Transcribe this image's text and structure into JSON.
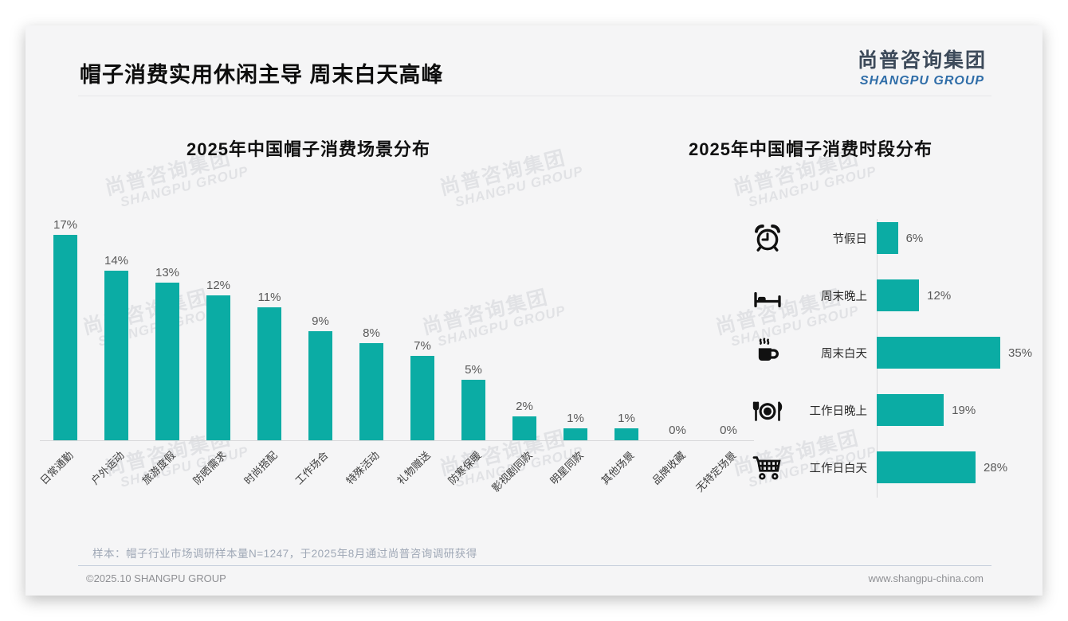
{
  "page": {
    "title": "帽子消费实用休闲主导 周末白天高峰",
    "logo": {
      "cn": "尚普咨询集团",
      "en": "SHANGPU GROUP"
    },
    "watermark": {
      "cn": "尚普咨询集团",
      "en": "SHANGPU GROUP"
    },
    "note": "样本：帽子行业市场调研样本量N=1247，于2025年8月通过尚普咨询调研获得",
    "footer_left": "©2025.10 SHANGPU GROUP",
    "footer_right": "www.shangpu-china.com"
  },
  "colors": {
    "bar_teal": "#0BACA4",
    "logo_en_blue": "#2f6da8",
    "logo_cn_dark": "#3d4a5a"
  },
  "chart_data": [
    {
      "type": "bar",
      "orientation": "vertical",
      "title": "2025年中国帽子消费场景分布",
      "categories": [
        "日常通勤",
        "户外运动",
        "旅游度假",
        "防晒需求",
        "时尚搭配",
        "工作场合",
        "特殊活动",
        "礼物赠送",
        "防寒保暖",
        "影视剧同款",
        "明星同款",
        "其他场景",
        "品牌收藏",
        "无特定场景"
      ],
      "values": [
        17,
        14,
        13,
        12,
        11,
        9,
        8,
        7,
        5,
        2,
        1,
        1,
        0,
        0
      ],
      "unit": "%",
      "ylim": [
        0,
        18
      ],
      "data_labels": "above-bar",
      "grid": false,
      "bar_color": "#0BACA4"
    },
    {
      "type": "bar",
      "orientation": "horizontal",
      "title": "2025年中国帽子消费时段分布",
      "categories": [
        "节假日",
        "周末晚上",
        "周末白天",
        "工作日晚上",
        "工作日白天"
      ],
      "values": [
        6,
        12,
        35,
        19,
        28
      ],
      "icons": [
        "alarm-clock-icon",
        "bed-icon",
        "coffee-cup-icon",
        "dining-plate-icon",
        "shopping-cart-icon"
      ],
      "unit": "%",
      "xlim": [
        0,
        40
      ],
      "data_labels": "right-of-bar",
      "grid": false,
      "bar_color": "#0BACA4"
    }
  ]
}
